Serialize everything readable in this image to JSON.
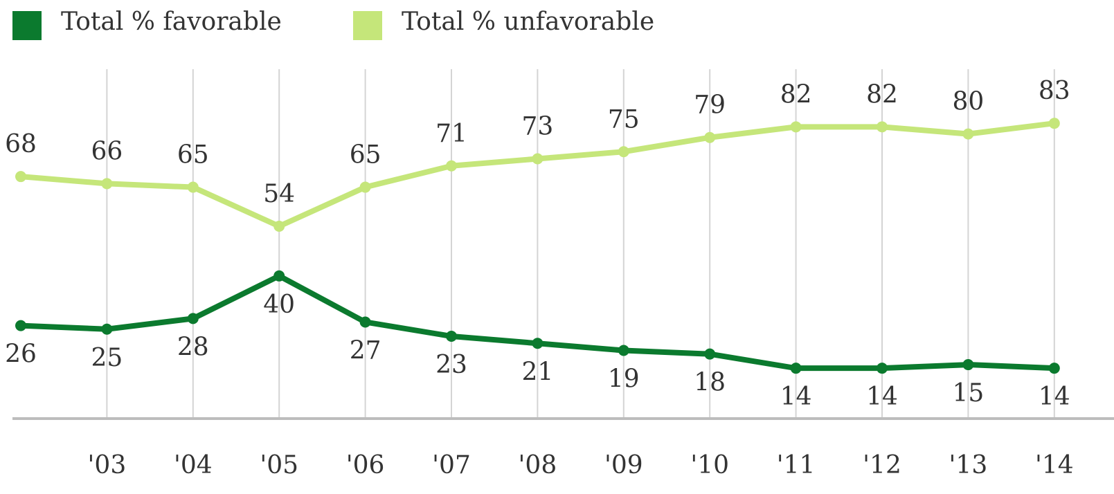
{
  "chart_data": {
    "type": "line",
    "categories": [
      null,
      "'03",
      "'04",
      "'05",
      "'06",
      "'07",
      "'08",
      "'09",
      "'10",
      "'11",
      "'12",
      "'13",
      "'14"
    ],
    "series": [
      {
        "name": "Total % favorable",
        "color": "#0b7a2e",
        "values": [
          26,
          25,
          28,
          40,
          27,
          23,
          21,
          19,
          18,
          14,
          14,
          15,
          14
        ]
      },
      {
        "name": "Total % unfavorable",
        "color": "#c5e67a",
        "values": [
          68,
          66,
          65,
          54,
          65,
          71,
          73,
          75,
          79,
          82,
          82,
          80,
          83
        ]
      }
    ],
    "ylim": [
      0,
      100
    ],
    "grid": true,
    "legend": "top"
  }
}
